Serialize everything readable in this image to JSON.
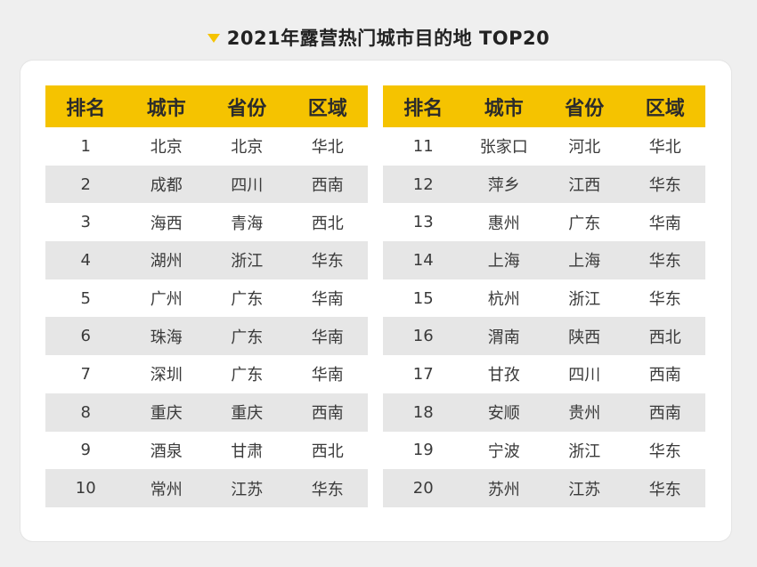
{
  "title": "2021年露营热门城市目的地 TOP20",
  "accent_color": "#f5c300",
  "headers": [
    "排名",
    "城市",
    "省份",
    "区域"
  ],
  "left_rows": [
    [
      "1",
      "北京",
      "北京",
      "华北"
    ],
    [
      "2",
      "成都",
      "四川",
      "西南"
    ],
    [
      "3",
      "海西",
      "青海",
      "西北"
    ],
    [
      "4",
      "湖州",
      "浙江",
      "华东"
    ],
    [
      "5",
      "广州",
      "广东",
      "华南"
    ],
    [
      "6",
      "珠海",
      "广东",
      "华南"
    ],
    [
      "7",
      "深圳",
      "广东",
      "华南"
    ],
    [
      "8",
      "重庆",
      "重庆",
      "西南"
    ],
    [
      "9",
      "酒泉",
      "甘肃",
      "西北"
    ],
    [
      "10",
      "常州",
      "江苏",
      "华东"
    ]
  ],
  "right_rows": [
    [
      "11",
      "张家口",
      "河北",
      "华北"
    ],
    [
      "12",
      "萍乡",
      "江西",
      "华东"
    ],
    [
      "13",
      "惠州",
      "广东",
      "华南"
    ],
    [
      "14",
      "上海",
      "上海",
      "华东"
    ],
    [
      "15",
      "杭州",
      "浙江",
      "华东"
    ],
    [
      "16",
      "渭南",
      "陕西",
      "西北"
    ],
    [
      "17",
      "甘孜",
      "四川",
      "西南"
    ],
    [
      "18",
      "安顺",
      "贵州",
      "西南"
    ],
    [
      "19",
      "宁波",
      "浙江",
      "华东"
    ],
    [
      "20",
      "苏州",
      "江苏",
      "华东"
    ]
  ]
}
